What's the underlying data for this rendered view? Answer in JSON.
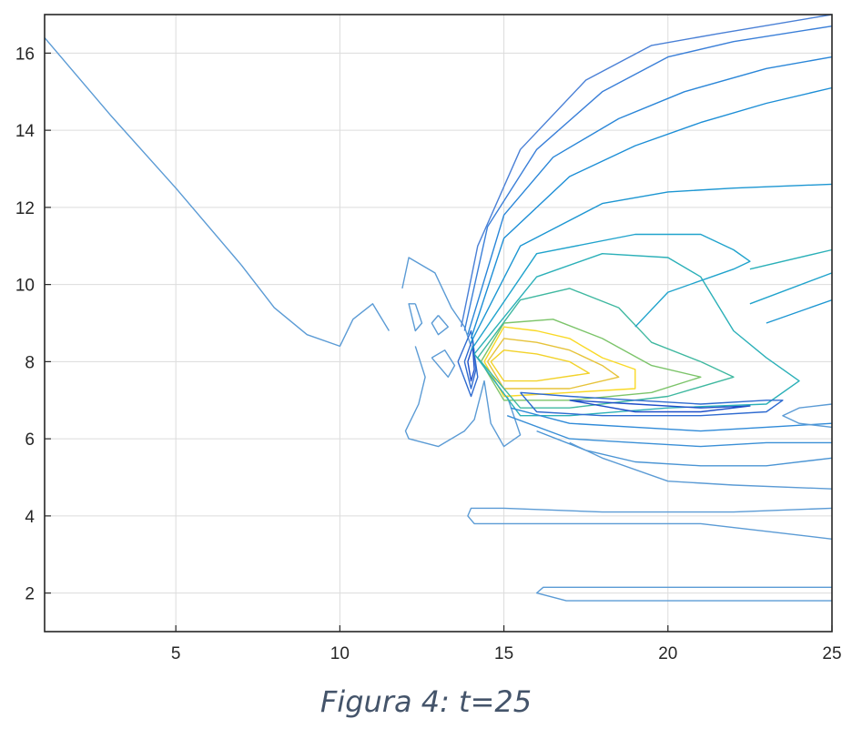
{
  "caption": "Figura 4: t=25",
  "chart_data": {
    "type": "contour",
    "title": "",
    "xlabel": "",
    "ylabel": "",
    "xlim": [
      1,
      25
    ],
    "ylim": [
      1,
      17
    ],
    "grid": true,
    "x_ticks": [
      5,
      10,
      15,
      20,
      25
    ],
    "y_ticks": [
      2,
      4,
      6,
      8,
      10,
      12,
      14,
      16
    ],
    "colormap": [
      "#0072bd",
      "#1f9ec9",
      "#2bb5a8",
      "#7cc46a",
      "#d9b63a",
      "#f9d926"
    ],
    "contours": [
      {
        "level_color": "#5b9bd5",
        "points": [
          [
            1,
            16.4
          ],
          [
            3,
            14.4
          ],
          [
            5,
            12.5
          ],
          [
            7,
            10.5
          ],
          [
            8,
            9.4
          ],
          [
            9,
            8.7
          ],
          [
            10,
            8.4
          ],
          [
            10.4,
            9.1
          ],
          [
            11,
            9.5
          ],
          [
            11.5,
            8.8
          ]
        ]
      },
      {
        "level_color": "#5b9bd5",
        "points": [
          [
            11.9,
            9.9
          ],
          [
            12.1,
            10.7
          ],
          [
            12.9,
            10.3
          ],
          [
            13.4,
            9.4
          ],
          [
            13.8,
            8.9
          ],
          [
            14,
            8.4
          ]
        ]
      },
      {
        "level_color": "#5b9bd5",
        "points": [
          [
            12.3,
            9.5
          ],
          [
            12.5,
            9
          ],
          [
            12.3,
            8.8
          ],
          [
            12.1,
            9.5
          ],
          [
            12.3,
            9.5
          ]
        ]
      },
      {
        "level_color": "#5b9bd5",
        "points": [
          [
            13,
            9.2
          ],
          [
            13.3,
            8.9
          ],
          [
            13,
            8.7
          ],
          [
            12.8,
            9
          ],
          [
            13,
            9.2
          ]
        ]
      },
      {
        "level_color": "#5b9bd5",
        "points": [
          [
            12.3,
            8.4
          ],
          [
            12.6,
            7.6
          ],
          [
            12.4,
            6.9
          ],
          [
            12,
            6.2
          ],
          [
            12.1,
            6
          ],
          [
            13,
            5.8
          ],
          [
            13.8,
            6.2
          ],
          [
            14.1,
            6.5
          ],
          [
            14.4,
            7.5
          ],
          [
            14.6,
            6.4
          ],
          [
            15,
            5.8
          ],
          [
            15.5,
            6.1
          ],
          [
            15.3,
            6.6
          ],
          [
            15.1,
            7.1
          ]
        ]
      },
      {
        "level_color": "#5b9bd5",
        "points": [
          [
            12.8,
            8.1
          ],
          [
            13.3,
            7.6
          ],
          [
            13.5,
            7.9
          ],
          [
            13.2,
            8.3
          ],
          [
            12.8,
            8.1
          ]
        ]
      },
      {
        "level_color": "#2f6bd0",
        "points": [
          [
            13.6,
            8.0
          ],
          [
            14.0,
            8.8
          ],
          [
            14.2,
            7.6
          ],
          [
            14.0,
            7.1
          ],
          [
            13.6,
            8.0
          ]
        ]
      },
      {
        "level_color": "#2f6bd0",
        "points": [
          [
            13.8,
            8.0
          ],
          [
            14.05,
            8.6
          ],
          [
            14.15,
            7.8
          ],
          [
            14.0,
            7.3
          ],
          [
            13.8,
            8.0
          ]
        ]
      },
      {
        "level_color": "#1f4fc8",
        "points": [
          [
            13.9,
            8.0
          ],
          [
            14.05,
            8.4
          ],
          [
            14.1,
            7.8
          ],
          [
            14.0,
            7.5
          ],
          [
            13.9,
            8.0
          ]
        ]
      },
      {
        "level_color": "#f9d926",
        "points": [
          [
            14.4,
            8.0
          ],
          [
            15,
            8.9
          ],
          [
            16,
            8.8
          ],
          [
            17,
            8.6
          ],
          [
            18,
            8.1
          ],
          [
            19,
            7.8
          ],
          [
            19,
            7.3
          ],
          [
            17,
            7.2
          ],
          [
            15,
            7.1
          ],
          [
            14.4,
            8.0
          ]
        ]
      },
      {
        "level_color": "#e6c33a",
        "points": [
          [
            14.5,
            8.0
          ],
          [
            15,
            8.6
          ],
          [
            16,
            8.5
          ],
          [
            17,
            8.3
          ],
          [
            18,
            7.9
          ],
          [
            18.5,
            7.6
          ],
          [
            17,
            7.3
          ],
          [
            15,
            7.3
          ],
          [
            14.5,
            8.0
          ]
        ]
      },
      {
        "level_color": "#f2d22a",
        "points": [
          [
            14.6,
            8.0
          ],
          [
            15,
            8.3
          ],
          [
            16,
            8.2
          ],
          [
            17,
            8.0
          ],
          [
            17.6,
            7.7
          ],
          [
            16,
            7.5
          ],
          [
            15,
            7.5
          ],
          [
            14.6,
            8.0
          ]
        ]
      },
      {
        "level_color": "#7cc46a",
        "points": [
          [
            14.3,
            8.0
          ],
          [
            15,
            9.0
          ],
          [
            16.5,
            9.1
          ],
          [
            18,
            8.6
          ],
          [
            19.5,
            7.9
          ],
          [
            21,
            7.6
          ],
          [
            19.5,
            7.2
          ],
          [
            17,
            7.0
          ],
          [
            15,
            7.0
          ],
          [
            14.3,
            8.0
          ]
        ]
      },
      {
        "level_color": "#3fb8a0",
        "points": [
          [
            14.2,
            8.1
          ],
          [
            15.5,
            9.6
          ],
          [
            17,
            9.9
          ],
          [
            18.5,
            9.4
          ],
          [
            19.5,
            8.5
          ],
          [
            21,
            8.0
          ],
          [
            22,
            7.6
          ],
          [
            20,
            7.1
          ],
          [
            17,
            6.8
          ],
          [
            15.5,
            6.8
          ],
          [
            14.2,
            8.1
          ]
        ]
      },
      {
        "level_color": "#2bb0b8",
        "points": [
          [
            14.1,
            8.2
          ],
          [
            16,
            10.2
          ],
          [
            18,
            10.8
          ],
          [
            20,
            10.7
          ],
          [
            21,
            10.2
          ],
          [
            22,
            8.8
          ],
          [
            23,
            8.1
          ],
          [
            24,
            7.5
          ],
          [
            23,
            6.9
          ],
          [
            20,
            6.8
          ],
          [
            17,
            6.6
          ],
          [
            15.5,
            6.6
          ],
          [
            14.1,
            8.2
          ]
        ]
      },
      {
        "level_color": "#20a3cc",
        "points": [
          [
            14.0,
            8.3
          ],
          [
            16,
            10.8
          ],
          [
            19,
            11.3
          ],
          [
            21,
            11.3
          ],
          [
            22,
            10.9
          ],
          [
            22.5,
            10.6
          ],
          [
            22,
            10.4
          ],
          [
            20,
            9.8
          ],
          [
            19,
            8.9
          ]
        ]
      },
      {
        "level_color": "#1c96d2",
        "points": [
          [
            14.0,
            8.5
          ],
          [
            15.5,
            11.0
          ],
          [
            18,
            12.1
          ],
          [
            20,
            12.4
          ],
          [
            22,
            12.5
          ],
          [
            25,
            12.6
          ]
        ]
      },
      {
        "level_color": "#1c8ed6",
        "points": [
          [
            14.0,
            8.6
          ],
          [
            15,
            11.2
          ],
          [
            17,
            12.8
          ],
          [
            19,
            13.6
          ],
          [
            21,
            14.2
          ],
          [
            23,
            14.7
          ],
          [
            25,
            15.1
          ]
        ]
      },
      {
        "level_color": "#2a86d8",
        "points": [
          [
            13.9,
            8.7
          ],
          [
            15,
            11.8
          ],
          [
            16.5,
            13.3
          ],
          [
            18.5,
            14.3
          ],
          [
            20.5,
            15.0
          ],
          [
            23,
            15.6
          ],
          [
            25,
            15.9
          ]
        ]
      },
      {
        "level_color": "#3a7fd8",
        "points": [
          [
            13.8,
            8.8
          ],
          [
            14.5,
            11.5
          ],
          [
            16,
            13.5
          ],
          [
            18,
            15.0
          ],
          [
            20,
            15.9
          ],
          [
            22,
            16.3
          ],
          [
            25,
            16.7
          ]
        ]
      },
      {
        "level_color": "#4a80d6",
        "points": [
          [
            13.7,
            8.9
          ],
          [
            14.2,
            11.0
          ],
          [
            15.5,
            13.5
          ],
          [
            17.5,
            15.3
          ],
          [
            19.5,
            16.2
          ],
          [
            21.5,
            16.5
          ],
          [
            25,
            17.0
          ]
        ]
      },
      {
        "level_color": "#2bb0b8",
        "points": [
          [
            22.5,
            10.4
          ],
          [
            25,
            10.9
          ]
        ]
      },
      {
        "level_color": "#20a3cc",
        "points": [
          [
            22.5,
            9.5
          ],
          [
            25,
            10.3
          ]
        ]
      },
      {
        "level_color": "#1c96d2",
        "points": [
          [
            23,
            9.0
          ],
          [
            25,
            9.6
          ]
        ]
      },
      {
        "level_color": "#2f6bd0",
        "points": [
          [
            15.5,
            7.2
          ],
          [
            17,
            7.1
          ],
          [
            19,
            7.0
          ],
          [
            21,
            6.9
          ],
          [
            23,
            7.0
          ],
          [
            23.5,
            7.0
          ],
          [
            23,
            6.7
          ],
          [
            21,
            6.6
          ],
          [
            18,
            6.6
          ],
          [
            16,
            6.7
          ],
          [
            15.5,
            7.2
          ]
        ]
      },
      {
        "level_color": "#1f4fc8",
        "points": [
          [
            17,
            7.0
          ],
          [
            19,
            6.9
          ],
          [
            21,
            6.8
          ],
          [
            22.5,
            6.85
          ],
          [
            21,
            6.7
          ],
          [
            19,
            6.7
          ],
          [
            17,
            7.0
          ]
        ]
      },
      {
        "level_color": "#2f8ad8",
        "points": [
          [
            15.2,
            6.8
          ],
          [
            17,
            6.4
          ],
          [
            19,
            6.3
          ],
          [
            21,
            6.2
          ],
          [
            23,
            6.3
          ],
          [
            25,
            6.4
          ]
        ]
      },
      {
        "level_color": "#3a8fd6",
        "points": [
          [
            15.1,
            6.6
          ],
          [
            17,
            6.0
          ],
          [
            19,
            5.9
          ],
          [
            21,
            5.8
          ],
          [
            23,
            5.9
          ],
          [
            25,
            5.9
          ]
        ]
      },
      {
        "level_color": "#4a94d4",
        "points": [
          [
            16,
            6.2
          ],
          [
            17.5,
            5.7
          ],
          [
            19,
            5.4
          ],
          [
            21,
            5.3
          ],
          [
            23,
            5.3
          ],
          [
            25,
            5.5
          ]
        ]
      },
      {
        "level_color": "#5b9bd5",
        "points": [
          [
            17,
            5.9
          ],
          [
            18,
            5.5
          ],
          [
            20,
            4.9
          ],
          [
            22,
            4.8
          ],
          [
            25,
            4.7
          ]
        ]
      },
      {
        "level_color": "#5b9bd5",
        "points": [
          [
            25,
            6.9
          ],
          [
            24,
            6.8
          ],
          [
            23.5,
            6.6
          ],
          [
            24,
            6.4
          ],
          [
            25,
            6.3
          ]
        ]
      },
      {
        "level_color": "#5b9bd5",
        "points": [
          [
            25,
            4.2
          ],
          [
            22,
            4.1
          ],
          [
            18,
            4.1
          ],
          [
            15,
            4.2
          ],
          [
            14,
            4.2
          ],
          [
            13.9,
            4.0
          ],
          [
            14.1,
            3.8
          ],
          [
            15,
            3.8
          ],
          [
            18,
            3.8
          ],
          [
            21,
            3.8
          ],
          [
            23,
            3.6
          ],
          [
            25,
            3.4
          ]
        ]
      },
      {
        "level_color": "#5b9bd5",
        "points": [
          [
            25,
            2.15
          ],
          [
            22,
            2.15
          ],
          [
            19,
            2.15
          ],
          [
            16.2,
            2.15
          ],
          [
            16,
            2.0
          ],
          [
            16.9,
            1.8
          ],
          [
            19,
            1.8
          ],
          [
            22,
            1.8
          ],
          [
            25,
            1.8
          ]
        ]
      }
    ]
  }
}
